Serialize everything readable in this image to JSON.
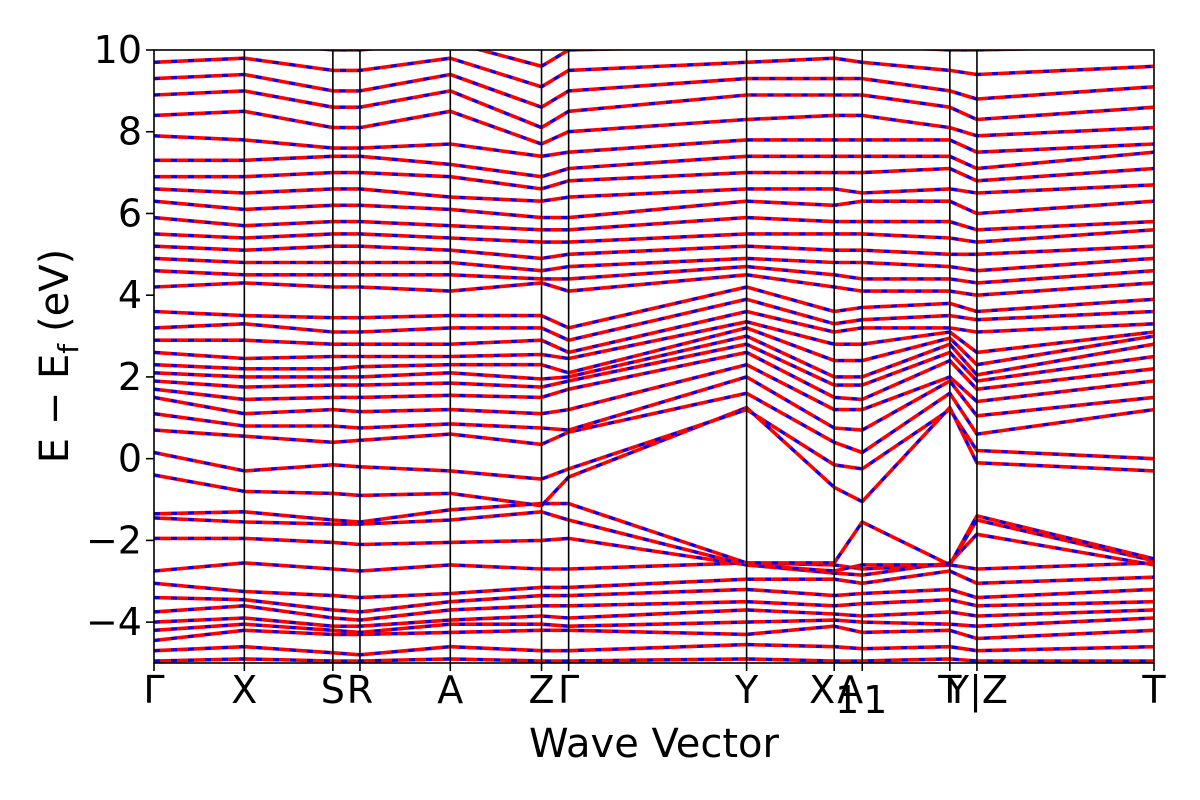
{
  "chart_data": {
    "type": "line",
    "title": "",
    "xlabel": "Wave Vector",
    "ylabel": "E − E",
    "ylabel_subscript": "f",
    "ylabel_units": "(eV)",
    "ylim": [
      -5,
      10
    ],
    "yticks": [
      10,
      8,
      6,
      4,
      2,
      0,
      -2,
      -4
    ],
    "ytick_labels": [
      "10",
      "8",
      "6",
      "4",
      "2",
      "0",
      "−2",
      "−4"
    ],
    "xlim": [
      0,
      11.07
    ],
    "kpath": [
      {
        "label": "Γ",
        "x": 0.0
      },
      {
        "label": "X",
        "x": 1.0
      },
      {
        "label": "S",
        "x": 1.98
      },
      {
        "label": "R",
        "x": 2.28
      },
      {
        "label": "A",
        "x": 3.28
      },
      {
        "label": "Z",
        "x": 4.29
      },
      {
        "label": "Γ",
        "x": 4.59
      },
      {
        "label": "Y",
        "x": 6.56
      },
      {
        "label": "X",
        "label_sub": "1",
        "x": 7.53
      },
      {
        "label": "A",
        "label_sub": "1",
        "x": 7.84
      },
      {
        "label": "T",
        "x": 8.81
      },
      {
        "label": "Y|Z",
        "x": 9.11
      },
      {
        "label": "T",
        "x": 11.07
      }
    ],
    "grid": false,
    "legend": "none",
    "series": [
      {
        "style": "solid",
        "color": "#ff0000"
      },
      {
        "style": "dashed",
        "color": "#0000ff"
      }
    ],
    "band_anchors": [
      [
        -4.95,
        -4.9,
        -4.95,
        -4.95,
        -4.9,
        -4.95,
        -4.95,
        -4.9,
        -4.95,
        -4.95,
        -4.9,
        -4.95,
        -4.95
      ],
      [
        -4.7,
        -4.6,
        -4.75,
        -4.8,
        -4.6,
        -4.7,
        -4.7,
        -4.55,
        -4.6,
        -4.65,
        -4.6,
        -4.7,
        -4.6
      ],
      [
        -4.45,
        -4.2,
        -4.3,
        -4.3,
        -4.25,
        -4.2,
        -4.2,
        -4.3,
        -4.1,
        -4.25,
        -4.2,
        -4.4,
        -4.2
      ],
      [
        -4.2,
        -4.05,
        -4.2,
        -4.25,
        -4.05,
        -4.05,
        -4.1,
        -4.0,
        -3.95,
        -4.0,
        -4.05,
        -4.1,
        -3.9
      ],
      [
        -4.0,
        -3.9,
        -4.1,
        -4.1,
        -3.95,
        -3.85,
        -3.9,
        -3.7,
        -3.8,
        -3.85,
        -3.75,
        -3.85,
        -3.7
      ],
      [
        -3.75,
        -3.6,
        -3.9,
        -3.95,
        -3.7,
        -3.6,
        -3.6,
        -3.5,
        -3.6,
        -3.55,
        -3.45,
        -3.6,
        -3.5
      ],
      [
        -3.4,
        -3.45,
        -3.7,
        -3.75,
        -3.5,
        -3.35,
        -3.35,
        -3.2,
        -3.35,
        -3.3,
        -3.2,
        -3.4,
        -3.2
      ],
      [
        -3.05,
        -3.25,
        -3.35,
        -3.4,
        -3.3,
        -3.15,
        -3.15,
        -2.95,
        -2.95,
        -3.05,
        -2.75,
        -3.05,
        -2.9
      ],
      [
        -2.75,
        -2.55,
        -2.7,
        -2.75,
        -2.6,
        -2.7,
        -2.7,
        -2.55,
        -2.6,
        -2.7,
        -2.6,
        -2.7,
        -2.55
      ],
      [
        -1.95,
        -1.95,
        -2.05,
        -2.1,
        -2.05,
        -2.0,
        -1.95,
        -2.6,
        -2.8,
        -2.85,
        -2.55,
        -1.85,
        -2.6
      ],
      [
        -1.45,
        -1.55,
        -1.6,
        -1.6,
        -1.5,
        -1.3,
        -1.5,
        -2.6,
        -2.75,
        -2.6,
        -2.6,
        -1.5,
        -2.5
      ],
      [
        -1.35,
        -1.3,
        -1.5,
        -1.55,
        -1.25,
        -1.1,
        -1.1,
        -2.55,
        -2.55,
        -1.55,
        -2.6,
        -1.4,
        -2.45
      ],
      [
        -0.4,
        -0.8,
        -0.85,
        -0.9,
        -0.85,
        -1.15,
        -0.45,
        1.25,
        -0.7,
        -1.05,
        1.25,
        -0.1,
        -0.3
      ],
      [
        0.15,
        -0.3,
        -0.15,
        -0.2,
        -0.3,
        -0.5,
        -0.25,
        1.2,
        -0.15,
        -0.25,
        1.2,
        0.2,
        0.0
      ],
      [
        0.7,
        0.55,
        0.4,
        0.45,
        0.6,
        0.35,
        0.65,
        1.6,
        0.4,
        0.15,
        1.6,
        0.6,
        1.2
      ],
      [
        1.1,
        0.8,
        0.8,
        0.75,
        0.85,
        0.75,
        0.7,
        2.0,
        0.75,
        0.7,
        1.9,
        1.05,
        1.5
      ],
      [
        1.5,
        1.1,
        1.2,
        1.15,
        1.2,
        1.1,
        1.2,
        2.3,
        1.2,
        1.2,
        2.0,
        1.4,
        1.9
      ],
      [
        1.7,
        1.45,
        1.5,
        1.5,
        1.55,
        1.5,
        1.7,
        2.6,
        1.5,
        1.45,
        2.4,
        1.7,
        2.2
      ],
      [
        1.9,
        1.75,
        1.8,
        1.8,
        1.85,
        1.75,
        1.9,
        2.8,
        1.8,
        1.8,
        2.6,
        1.9,
        2.5
      ],
      [
        2.1,
        2.0,
        2.0,
        2.0,
        2.1,
        1.95,
        2.0,
        3.0,
        2.0,
        2.0,
        2.8,
        2.05,
        2.8
      ],
      [
        2.3,
        2.2,
        2.2,
        2.25,
        2.3,
        2.3,
        2.1,
        3.2,
        2.4,
        2.4,
        2.95,
        2.3,
        3.0
      ],
      [
        2.6,
        2.45,
        2.5,
        2.5,
        2.5,
        2.55,
        2.45,
        3.35,
        2.8,
        2.8,
        3.1,
        2.6,
        3.1
      ],
      [
        2.9,
        2.9,
        2.8,
        2.8,
        2.8,
        2.9,
        2.6,
        3.6,
        3.1,
        3.2,
        3.2,
        3.1,
        3.3
      ],
      [
        3.2,
        3.3,
        3.1,
        3.1,
        3.2,
        3.2,
        2.9,
        3.9,
        3.3,
        3.4,
        3.5,
        3.4,
        3.6
      ],
      [
        3.6,
        3.5,
        3.45,
        3.45,
        3.5,
        3.5,
        3.2,
        4.2,
        3.6,
        3.7,
        3.8,
        3.6,
        3.9
      ],
      [
        4.2,
        4.3,
        4.2,
        4.2,
        4.1,
        4.3,
        4.1,
        4.5,
        4.2,
        4.1,
        4.1,
        4.0,
        4.3
      ],
      [
        4.6,
        4.5,
        4.5,
        4.5,
        4.5,
        4.4,
        4.4,
        4.7,
        4.5,
        4.4,
        4.4,
        4.3,
        4.6
      ],
      [
        4.9,
        4.8,
        4.8,
        4.8,
        4.8,
        4.6,
        4.7,
        4.9,
        4.8,
        4.8,
        4.7,
        4.6,
        4.9
      ],
      [
        5.2,
        5.1,
        5.2,
        5.2,
        5.1,
        4.9,
        5.0,
        5.2,
        5.1,
        5.1,
        5.0,
        5.0,
        5.2
      ],
      [
        5.5,
        5.4,
        5.5,
        5.5,
        5.4,
        5.3,
        5.3,
        5.5,
        5.5,
        5.5,
        5.4,
        5.3,
        5.6
      ],
      [
        5.9,
        5.7,
        5.8,
        5.8,
        5.7,
        5.6,
        5.6,
        5.9,
        5.8,
        5.8,
        5.8,
        5.6,
        5.8
      ],
      [
        6.3,
        6.1,
        6.2,
        6.2,
        6.1,
        5.9,
        5.9,
        6.3,
        6.2,
        6.3,
        6.3,
        6.0,
        6.3
      ],
      [
        6.6,
        6.5,
        6.6,
        6.6,
        6.4,
        6.3,
        6.4,
        6.6,
        6.6,
        6.5,
        6.6,
        6.5,
        6.7
      ],
      [
        6.9,
        6.9,
        7.0,
        7.0,
        6.9,
        6.6,
        6.8,
        7.0,
        7.0,
        7.0,
        7.1,
        6.8,
        7.1
      ],
      [
        7.3,
        7.3,
        7.4,
        7.4,
        7.2,
        6.9,
        7.1,
        7.4,
        7.4,
        7.4,
        7.4,
        7.1,
        7.5
      ],
      [
        7.9,
        7.8,
        7.6,
        7.6,
        7.7,
        7.4,
        7.5,
        7.8,
        7.8,
        7.8,
        7.8,
        7.5,
        7.7
      ],
      [
        8.4,
        8.5,
        8.1,
        8.1,
        8.5,
        7.7,
        8.0,
        8.3,
        8.4,
        8.4,
        8.1,
        7.9,
        8.1
      ],
      [
        8.9,
        9.0,
        8.6,
        8.6,
        9.0,
        8.1,
        8.5,
        8.9,
        8.9,
        8.9,
        8.6,
        8.3,
        8.6
      ],
      [
        9.3,
        9.4,
        9.0,
        9.0,
        9.4,
        8.6,
        9.0,
        9.3,
        9.3,
        9.3,
        9.0,
        8.8,
        9.1
      ],
      [
        9.7,
        9.8,
        9.5,
        9.5,
        9.8,
        9.1,
        9.5,
        9.7,
        9.8,
        9.7,
        9.5,
        9.4,
        9.6
      ],
      [
        10.3,
        10.2,
        10.0,
        10.0,
        10.2,
        9.6,
        10.0,
        10.1,
        10.2,
        10.1,
        10.0,
        10.0,
        10.1
      ]
    ]
  }
}
